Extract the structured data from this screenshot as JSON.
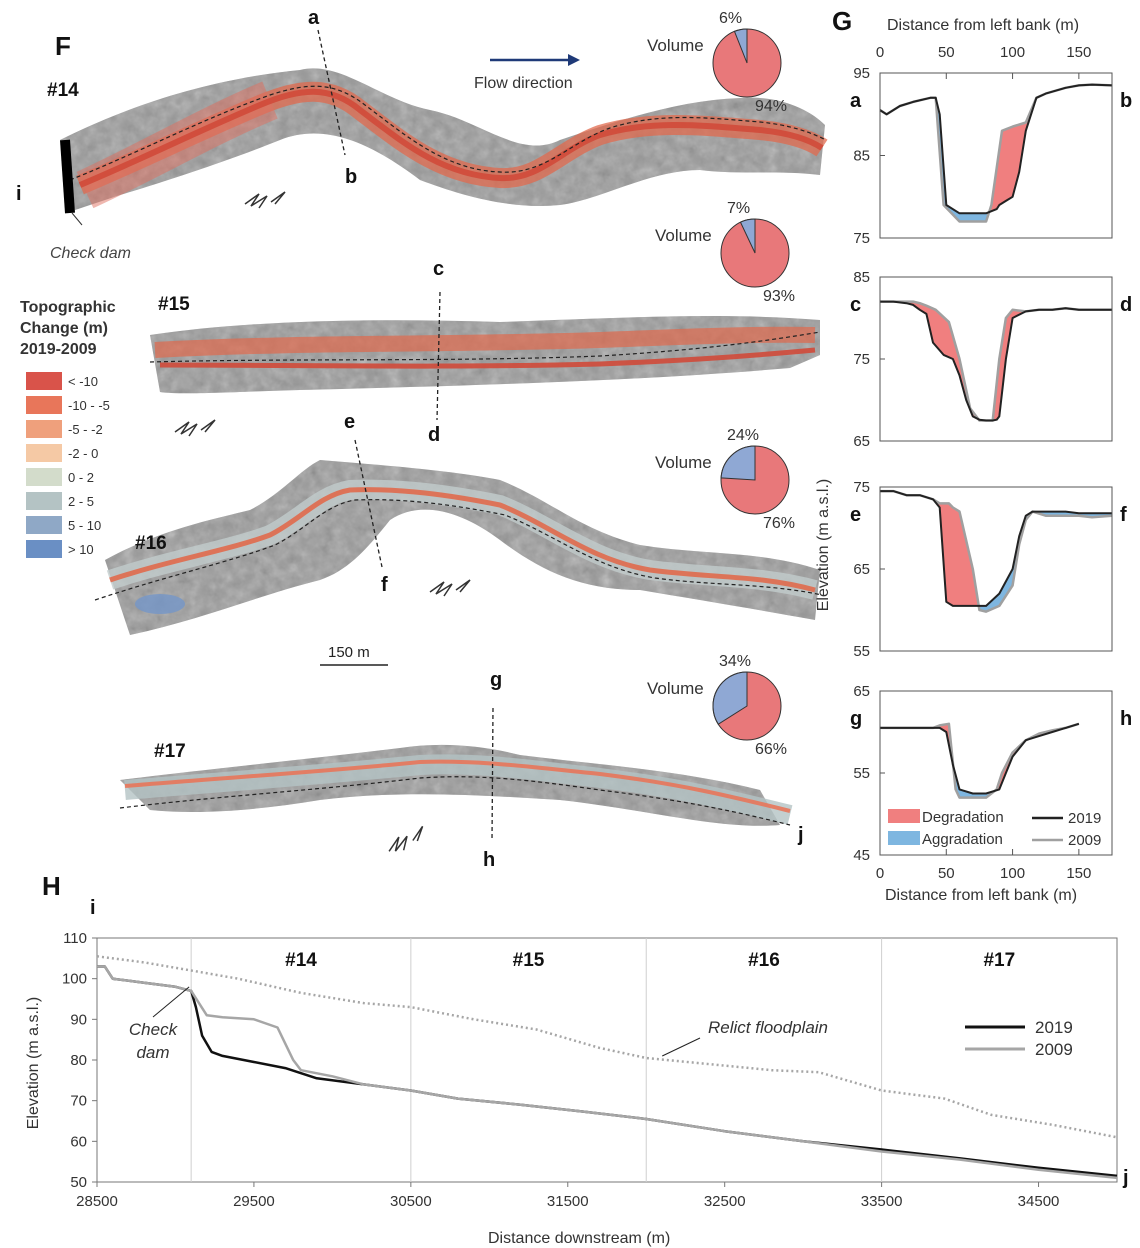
{
  "panels": {
    "F": "F",
    "G": "G",
    "H": "H"
  },
  "panel_f": {
    "flow_label": "Flow direction",
    "check_dam_label": "Check dam",
    "scale_label": "150 m",
    "legend": {
      "title_lines": [
        "Topographic",
        "Change (m)",
        "2019-2009"
      ],
      "items": [
        {
          "label": "< -10",
          "color": "#d9534a"
        },
        {
          "label": "-10 - -5",
          "color": "#e8765a"
        },
        {
          "label": "-5 - -2",
          "color": "#efa07c"
        },
        {
          "label": "-2 - 0",
          "color": "#f5c9a5"
        },
        {
          "label": "0 - 2",
          "color": "#d3dccb"
        },
        {
          "label": "2 - 5",
          "color": "#b4c3c4"
        },
        {
          "label": "5 - 10",
          "color": "#8fa8c6"
        },
        {
          "label": "> 10",
          "color": "#6a8fc4"
        }
      ]
    },
    "reaches": [
      {
        "id": "#14",
        "start": "i",
        "cross_top": "a",
        "cross_bottom": "b",
        "end": "",
        "pie_label": "Volume",
        "deg_pct": 94,
        "agg_pct": 6,
        "deg_text": "94%",
        "agg_text": "6%"
      },
      {
        "id": "#15",
        "start": "",
        "cross_top": "c",
        "cross_bottom": "d",
        "end": "",
        "pie_label": "Volume",
        "deg_pct": 93,
        "agg_pct": 7,
        "deg_text": "93%",
        "agg_text": "7%"
      },
      {
        "id": "#16",
        "start": "",
        "cross_top": "e",
        "cross_bottom": "f",
        "end": "",
        "pie_label": "Volume",
        "deg_pct": 76,
        "agg_pct": 24,
        "deg_text": "76%",
        "agg_text": "24%"
      },
      {
        "id": "#17",
        "start": "",
        "cross_top": "g",
        "cross_bottom": "h",
        "end": "j",
        "pie_label": "Volume",
        "deg_pct": 66,
        "agg_pct": 34,
        "deg_text": "66%",
        "agg_text": "34%"
      }
    ]
  },
  "chart_data": [
    {
      "type": "area",
      "panel": "G",
      "profile": "a-b",
      "left_label": "a",
      "right_label": "b",
      "xlabel": "Distance from left bank (m)",
      "x_ticks": [
        0,
        50,
        100,
        150
      ],
      "xlim": [
        0,
        175
      ],
      "ylim": [
        75,
        95
      ],
      "y_ticks": [
        75,
        85,
        95
      ],
      "series": [
        {
          "name": "2019",
          "x": [
            0,
            5,
            15,
            25,
            38,
            42,
            45,
            50,
            60,
            70,
            80,
            88,
            90,
            95,
            100,
            105,
            110,
            118,
            125,
            140,
            150,
            160,
            175
          ],
          "y": [
            90.5,
            90,
            91,
            91.5,
            92,
            92,
            90,
            79,
            78,
            78,
            78,
            78.5,
            79,
            79.5,
            80,
            83,
            88,
            92,
            92.5,
            93.2,
            93.5,
            93.6,
            93.5
          ]
        },
        {
          "name": "2009",
          "x": [
            0,
            5,
            15,
            25,
            38,
            42,
            48,
            60,
            70,
            80,
            84,
            92,
            100,
            110,
            118,
            125,
            140,
            150,
            160,
            175
          ],
          "y": [
            90.5,
            90,
            91,
            91.5,
            92,
            92,
            79,
            77,
            77,
            77,
            79,
            88,
            88.5,
            89,
            92,
            92.5,
            93.2,
            93.5,
            93.6,
            93.5
          ]
        }
      ],
      "fill_legend": [
        {
          "name": "Degradation",
          "color": "#f07f7f"
        },
        {
          "name": "Aggradation",
          "color": "#7eb6e0"
        }
      ]
    },
    {
      "type": "area",
      "panel": "G",
      "profile": "c-d",
      "left_label": "c",
      "right_label": "d",
      "ylim": [
        65,
        85
      ],
      "y_ticks": [
        65,
        75,
        85
      ],
      "series": [
        {
          "name": "2019",
          "x": [
            0,
            10,
            20,
            25,
            30,
            35,
            40,
            48,
            55,
            60,
            65,
            70,
            75,
            80,
            85,
            88,
            90,
            95,
            100,
            110,
            120,
            130,
            140,
            150,
            160,
            175
          ],
          "y": [
            82,
            82,
            81.8,
            81.6,
            81,
            80.5,
            77,
            75.5,
            75,
            73,
            70,
            68,
            67.6,
            67.5,
            67.5,
            67.6,
            68,
            75,
            80,
            80.8,
            81,
            81,
            81.2,
            81,
            81,
            81
          ]
        },
        {
          "name": "2009",
          "x": [
            0,
            10,
            20,
            25,
            30,
            35,
            42,
            52,
            60,
            68,
            75,
            80,
            85,
            90,
            95,
            100,
            110,
            120,
            130,
            140,
            150,
            160,
            175
          ],
          "y": [
            82,
            82,
            82,
            82,
            81.8,
            81.5,
            81,
            79.5,
            75,
            69,
            67.5,
            67.5,
            67.5,
            75,
            80,
            81,
            80.8,
            81,
            81,
            81.2,
            81,
            81,
            81
          ]
        }
      ]
    },
    {
      "type": "area",
      "panel": "G",
      "profile": "e-f",
      "left_label": "e",
      "right_label": "f",
      "ylim": [
        55,
        75
      ],
      "y_ticks": [
        55,
        65,
        75
      ],
      "series": [
        {
          "name": "2019",
          "x": [
            0,
            10,
            20,
            30,
            40,
            45,
            50,
            55,
            60,
            70,
            80,
            90,
            100,
            105,
            110,
            115,
            125,
            140,
            150,
            160,
            175
          ],
          "y": [
            74.5,
            74.5,
            74,
            74,
            73.5,
            72.5,
            61,
            60.5,
            60.5,
            60.5,
            60.5,
            62,
            65,
            69,
            71.5,
            72,
            72,
            72,
            71.8,
            71.8,
            71.8
          ]
        },
        {
          "name": "2009",
          "x": [
            0,
            10,
            20,
            30,
            40,
            45,
            52,
            55,
            60,
            70,
            75,
            80,
            90,
            100,
            105,
            110,
            115,
            125,
            140,
            150,
            160,
            175
          ],
          "y": [
            74.5,
            74.5,
            74,
            74,
            73.5,
            73,
            73,
            72.5,
            72,
            65,
            60,
            59.8,
            60.5,
            63,
            68,
            71,
            72,
            71.5,
            71.5,
            71.5,
            71.3,
            71.5
          ]
        }
      ]
    },
    {
      "type": "area",
      "panel": "G",
      "profile": "g-h",
      "left_label": "g",
      "right_label": "h",
      "xlabel": "Distance from left bank (m)",
      "x_ticks": [
        0,
        50,
        100,
        150
      ],
      "xlim": [
        0,
        175
      ],
      "ylim": [
        45,
        65
      ],
      "y_ticks": [
        45,
        55,
        65
      ],
      "ylabel": "Elevation (m a.s.l.)",
      "series": [
        {
          "name": "2019",
          "x": [
            0,
            10,
            20,
            30,
            40,
            45,
            50,
            55,
            60,
            70,
            80,
            90,
            95,
            100,
            110,
            120,
            130,
            140,
            150
          ],
          "y": [
            60.5,
            60.5,
            60.5,
            60.5,
            60.5,
            60.5,
            60,
            56,
            53,
            52.5,
            52.5,
            53,
            55,
            57,
            59,
            59.5,
            60,
            60.5,
            61
          ]
        },
        {
          "name": "2009",
          "x": [
            0,
            10,
            20,
            30,
            40,
            45,
            52,
            57,
            60,
            70,
            80,
            88,
            92,
            100,
            110,
            120,
            130,
            140,
            150
          ],
          "y": [
            60.5,
            60.5,
            60.5,
            60.5,
            60.5,
            60.8,
            61,
            53,
            52,
            52,
            52,
            53,
            55,
            57.5,
            59,
            59.8,
            60.2,
            60.5,
            61
          ]
        }
      ],
      "fill_legend": [
        {
          "name": "Degradation",
          "color": "#f07f7f"
        },
        {
          "name": "Aggradation",
          "color": "#7eb6e0"
        }
      ]
    },
    {
      "type": "line",
      "panel": "H",
      "left_label": "i",
      "right_label": "j",
      "xlabel": "Distance downstream (m)",
      "ylabel": "Elevation (m a.s.l.)",
      "xlim": [
        28500,
        35000
      ],
      "ylim": [
        50,
        110
      ],
      "x_ticks": [
        28500,
        29500,
        30500,
        31500,
        32500,
        33500,
        34500
      ],
      "y_ticks": [
        50,
        60,
        70,
        80,
        90,
        100,
        110
      ],
      "dividers": [
        29100,
        30500,
        32000,
        33500
      ],
      "reach_labels": [
        {
          "text": "#14",
          "x": 29800
        },
        {
          "text": "#15",
          "x": 31250
        },
        {
          "text": "#16",
          "x": 32750
        },
        {
          "text": "#17",
          "x": 34250
        }
      ],
      "annotations": [
        {
          "text": "Check",
          "text2": "dam",
          "target_x": 29100,
          "target_y": 97
        },
        {
          "text": "Relict floodplain",
          "target_x": 32000,
          "target_y": 80
        }
      ],
      "series": [
        {
          "name": "2019",
          "color": "#111111",
          "x": [
            28500,
            28550,
            28600,
            28800,
            29000,
            29100,
            29130,
            29170,
            29230,
            29300,
            29500,
            29700,
            29900,
            30200,
            30500,
            30800,
            31200,
            31600,
            32000,
            32500,
            33000,
            33500,
            34000,
            34500,
            35000
          ],
          "y": [
            103,
            103,
            100,
            99,
            98,
            97,
            93,
            86,
            82,
            81,
            79.5,
            78,
            75.5,
            74,
            72.5,
            70.5,
            69,
            67.3,
            65.5,
            62.5,
            60,
            58,
            55.8,
            53.5,
            51.5
          ]
        },
        {
          "name": "2009",
          "color": "#a6a6a6",
          "x": [
            28500,
            28550,
            28600,
            28800,
            29000,
            29100,
            29200,
            29300,
            29500,
            29650,
            29700,
            29750,
            29800,
            30000,
            30200,
            30500,
            30800,
            31200,
            31600,
            32000,
            32500,
            33000,
            33500,
            34000,
            34500,
            35000
          ],
          "y": [
            103,
            103,
            100,
            99,
            98,
            97,
            91,
            90.5,
            90,
            88,
            84,
            80,
            77.5,
            76,
            74,
            72.5,
            70.5,
            69,
            67.3,
            65.5,
            62.5,
            60,
            57.5,
            55.5,
            53,
            51
          ]
        },
        {
          "name": "Relict floodplain",
          "color": "#a6a6a6",
          "style": "dotted",
          "x": [
            28500,
            28800,
            29100,
            29400,
            29800,
            30200,
            30500,
            30900,
            31300,
            31700,
            32000,
            32400,
            32800,
            33100,
            33500,
            33900,
            34200,
            34600,
            35000
          ],
          "y": [
            105.5,
            104,
            102,
            100,
            96.5,
            94,
            93,
            90,
            87.5,
            83,
            80.5,
            79,
            77.5,
            77,
            72.5,
            70.5,
            66.5,
            64,
            61
          ]
        }
      ]
    }
  ]
}
